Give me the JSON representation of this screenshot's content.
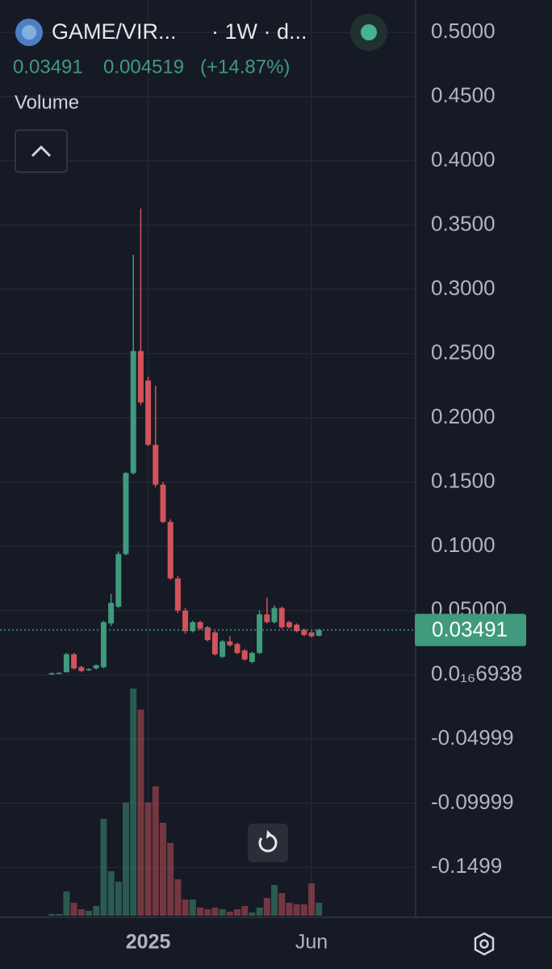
{
  "chart_data": {
    "type": "candlestick",
    "symbol": "GAME/VIR...",
    "interval": "· 1W · d...",
    "header_values": [
      "0.03491",
      "0.004519",
      "(+14.87%)"
    ],
    "volume_label": "Volume",
    "up_color": "#3f9a7e",
    "down_color": "#d2535b",
    "categories": [
      null,
      null,
      null,
      null,
      null,
      null,
      null,
      null,
      null,
      null,
      null,
      null,
      null,
      "2025",
      null,
      null,
      null,
      null,
      null,
      null,
      null,
      null,
      null,
      null,
      null,
      null,
      null,
      null,
      null,
      null,
      null,
      null,
      null,
      null,
      null,
      "Jun",
      null
    ],
    "open": [
      0.001,
      0.001,
      0.002,
      0.016,
      0.006,
      0.004,
      0.005,
      0.006,
      0.04,
      0.053,
      0.094,
      0.157,
      0.252,
      0.229,
      0.179,
      0.148,
      0.119,
      0.075,
      0.05,
      0.034,
      0.041,
      0.037,
      0.033,
      0.014,
      0.026,
      0.024,
      0.019,
      0.01,
      0.017,
      0.047,
      0.041,
      0.052,
      0.041,
      0.039,
      0.035,
      0.033,
      0.0304
    ],
    "high": [
      0.002,
      0.002,
      0.017,
      0.017,
      0.007,
      0.005,
      0.008,
      0.042,
      0.063,
      0.096,
      0.158,
      0.327,
      0.363,
      0.232,
      0.225,
      0.15,
      0.121,
      0.077,
      0.052,
      0.042,
      0.042,
      0.038,
      0.034,
      0.027,
      0.03,
      0.025,
      0.02,
      0.018,
      0.05,
      0.06,
      0.054,
      0.053,
      0.042,
      0.04,
      0.036,
      0.034,
      0.036
    ],
    "low": [
      0.0008,
      0.001,
      0.002,
      0.004,
      0.002,
      0.003,
      0.004,
      0.005,
      0.038,
      0.052,
      0.093,
      0.156,
      0.21,
      0.178,
      0.146,
      0.118,
      0.074,
      0.048,
      0.032,
      0.033,
      0.035,
      0.026,
      0.015,
      0.013,
      0.022,
      0.016,
      0.011,
      0.009,
      0.016,
      0.04,
      0.04,
      0.036,
      0.036,
      0.033,
      0.03,
      0.029,
      0.03
    ],
    "close": [
      0.0012,
      0.0015,
      0.016,
      0.005,
      0.003,
      0.0045,
      0.0075,
      0.041,
      0.056,
      0.094,
      0.157,
      0.252,
      0.212,
      0.179,
      0.148,
      0.119,
      0.075,
      0.05,
      0.034,
      0.041,
      0.036,
      0.027,
      0.016,
      0.026,
      0.023,
      0.017,
      0.012,
      0.017,
      0.047,
      0.041,
      0.052,
      0.037,
      0.037,
      0.034,
      0.031,
      0.03,
      0.03491
    ],
    "volume": {
      "values": [
        2,
        2,
        30,
        16,
        8,
        6,
        12,
        120,
        55,
        42,
        140,
        281,
        255,
        140,
        160,
        115,
        90,
        45,
        20,
        20,
        10,
        8,
        10,
        8,
        5,
        8,
        12,
        4,
        10,
        22,
        38,
        28,
        16,
        14,
        14,
        40,
        16
      ],
      "ylim": [
        0,
        290
      ]
    },
    "ylim": [
      -0.1887,
      0.5252
    ],
    "yticks": [
      {
        "value": 0.5,
        "label": "0.5000"
      },
      {
        "value": 0.45,
        "label": "0.4500"
      },
      {
        "value": 0.4,
        "label": "0.4000"
      },
      {
        "value": 0.35,
        "label": "0.3500"
      },
      {
        "value": 0.3,
        "label": "0.3000"
      },
      {
        "value": 0.25,
        "label": "0.2500"
      },
      {
        "value": 0.2,
        "label": "0.2000"
      },
      {
        "value": 0.15,
        "label": "0.1500"
      },
      {
        "value": 0.1,
        "label": "0.1000"
      },
      {
        "value": 0.05,
        "label": "0.05000"
      },
      {
        "value": 6.938e-17,
        "label": "0.0₁₆6938"
      },
      -0.04999,
      -0.09999,
      -0.1499
    ],
    "last_price": {
      "value": 0.03491,
      "label": "0.03491"
    },
    "grid": true
  }
}
